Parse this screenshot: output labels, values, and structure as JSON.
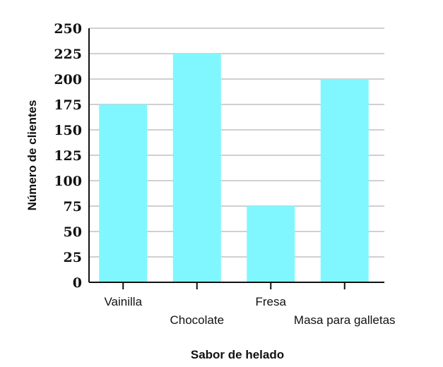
{
  "chart_data": {
    "type": "bar",
    "categories": [
      "Vainilla",
      "Chocolate",
      "Fresa",
      "Masa para galletas"
    ],
    "values": [
      175,
      225,
      75,
      200
    ],
    "xlabel": "Sabor de helado",
    "ylabel": "Número de clientes",
    "ylim": [
      0,
      250
    ],
    "yticks": [
      "0",
      "25",
      "50",
      "75",
      "100",
      "125",
      "150",
      "175",
      "200",
      "225",
      "250"
    ],
    "grid": true,
    "bar_color": "#80f7ff"
  }
}
